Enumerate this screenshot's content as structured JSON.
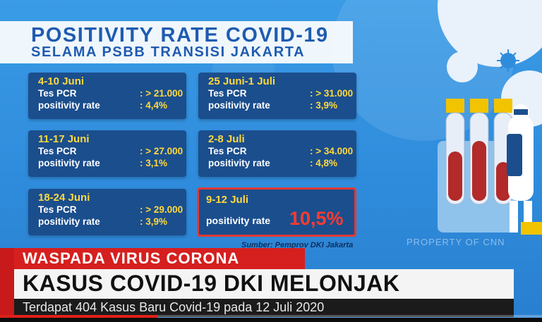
{
  "title": {
    "line1": "POSITIVITY RATE COVID-19",
    "line2": "SELAMA PSBB TRANSISI JAKARTA"
  },
  "cards": [
    {
      "date": "4-10 Juni",
      "tes_label": "Tes PCR",
      "tes_value": ": > 21.000",
      "rate_label": "positivity rate",
      "rate_value": ": 4,4%"
    },
    {
      "date": "25 Juni-1 Juli",
      "tes_label": "Tes PCR",
      "tes_value": ": > 31.000",
      "rate_label": "positivity rate",
      "rate_value": ": 3,9%"
    },
    {
      "date": "11-17 Juni",
      "tes_label": "Tes PCR",
      "tes_value": ": > 27.000",
      "rate_label": "positivity rate",
      "rate_value": ": 3,1%"
    },
    {
      "date": "2-8 Juli",
      "tes_label": "Tes PCR",
      "tes_value": ": > 34.000",
      "rate_label": "positivity rate",
      "rate_value": ": 4,8%"
    },
    {
      "date": "18-24 Juni",
      "tes_label": "Tes PCR",
      "tes_value": ": > 29.000",
      "rate_label": "positivity rate",
      "rate_value": ": 3,9%"
    }
  ],
  "highlight": {
    "date": "9-12 Juli",
    "rate_label": "positivity rate",
    "rate_value": "10,5%"
  },
  "source": "Sumber: Pemprov DKI Jakarta",
  "watermark": "PROPERTY OF CNN",
  "ticker": {
    "label": "WASPADA VIRUS CORONA",
    "headline": "KASUS COVID-19 DKI MELONJAK",
    "subline": "Terdapat 404 Kasus Baru Covid-19 pada 12 Juli 2020"
  },
  "video_progress": 0.29,
  "colors": {
    "card_bg": "#1b4e8d",
    "highlight_border": "#e53935",
    "accent_yellow": "#ffd93b",
    "ticker_red": "#d61f1f"
  }
}
